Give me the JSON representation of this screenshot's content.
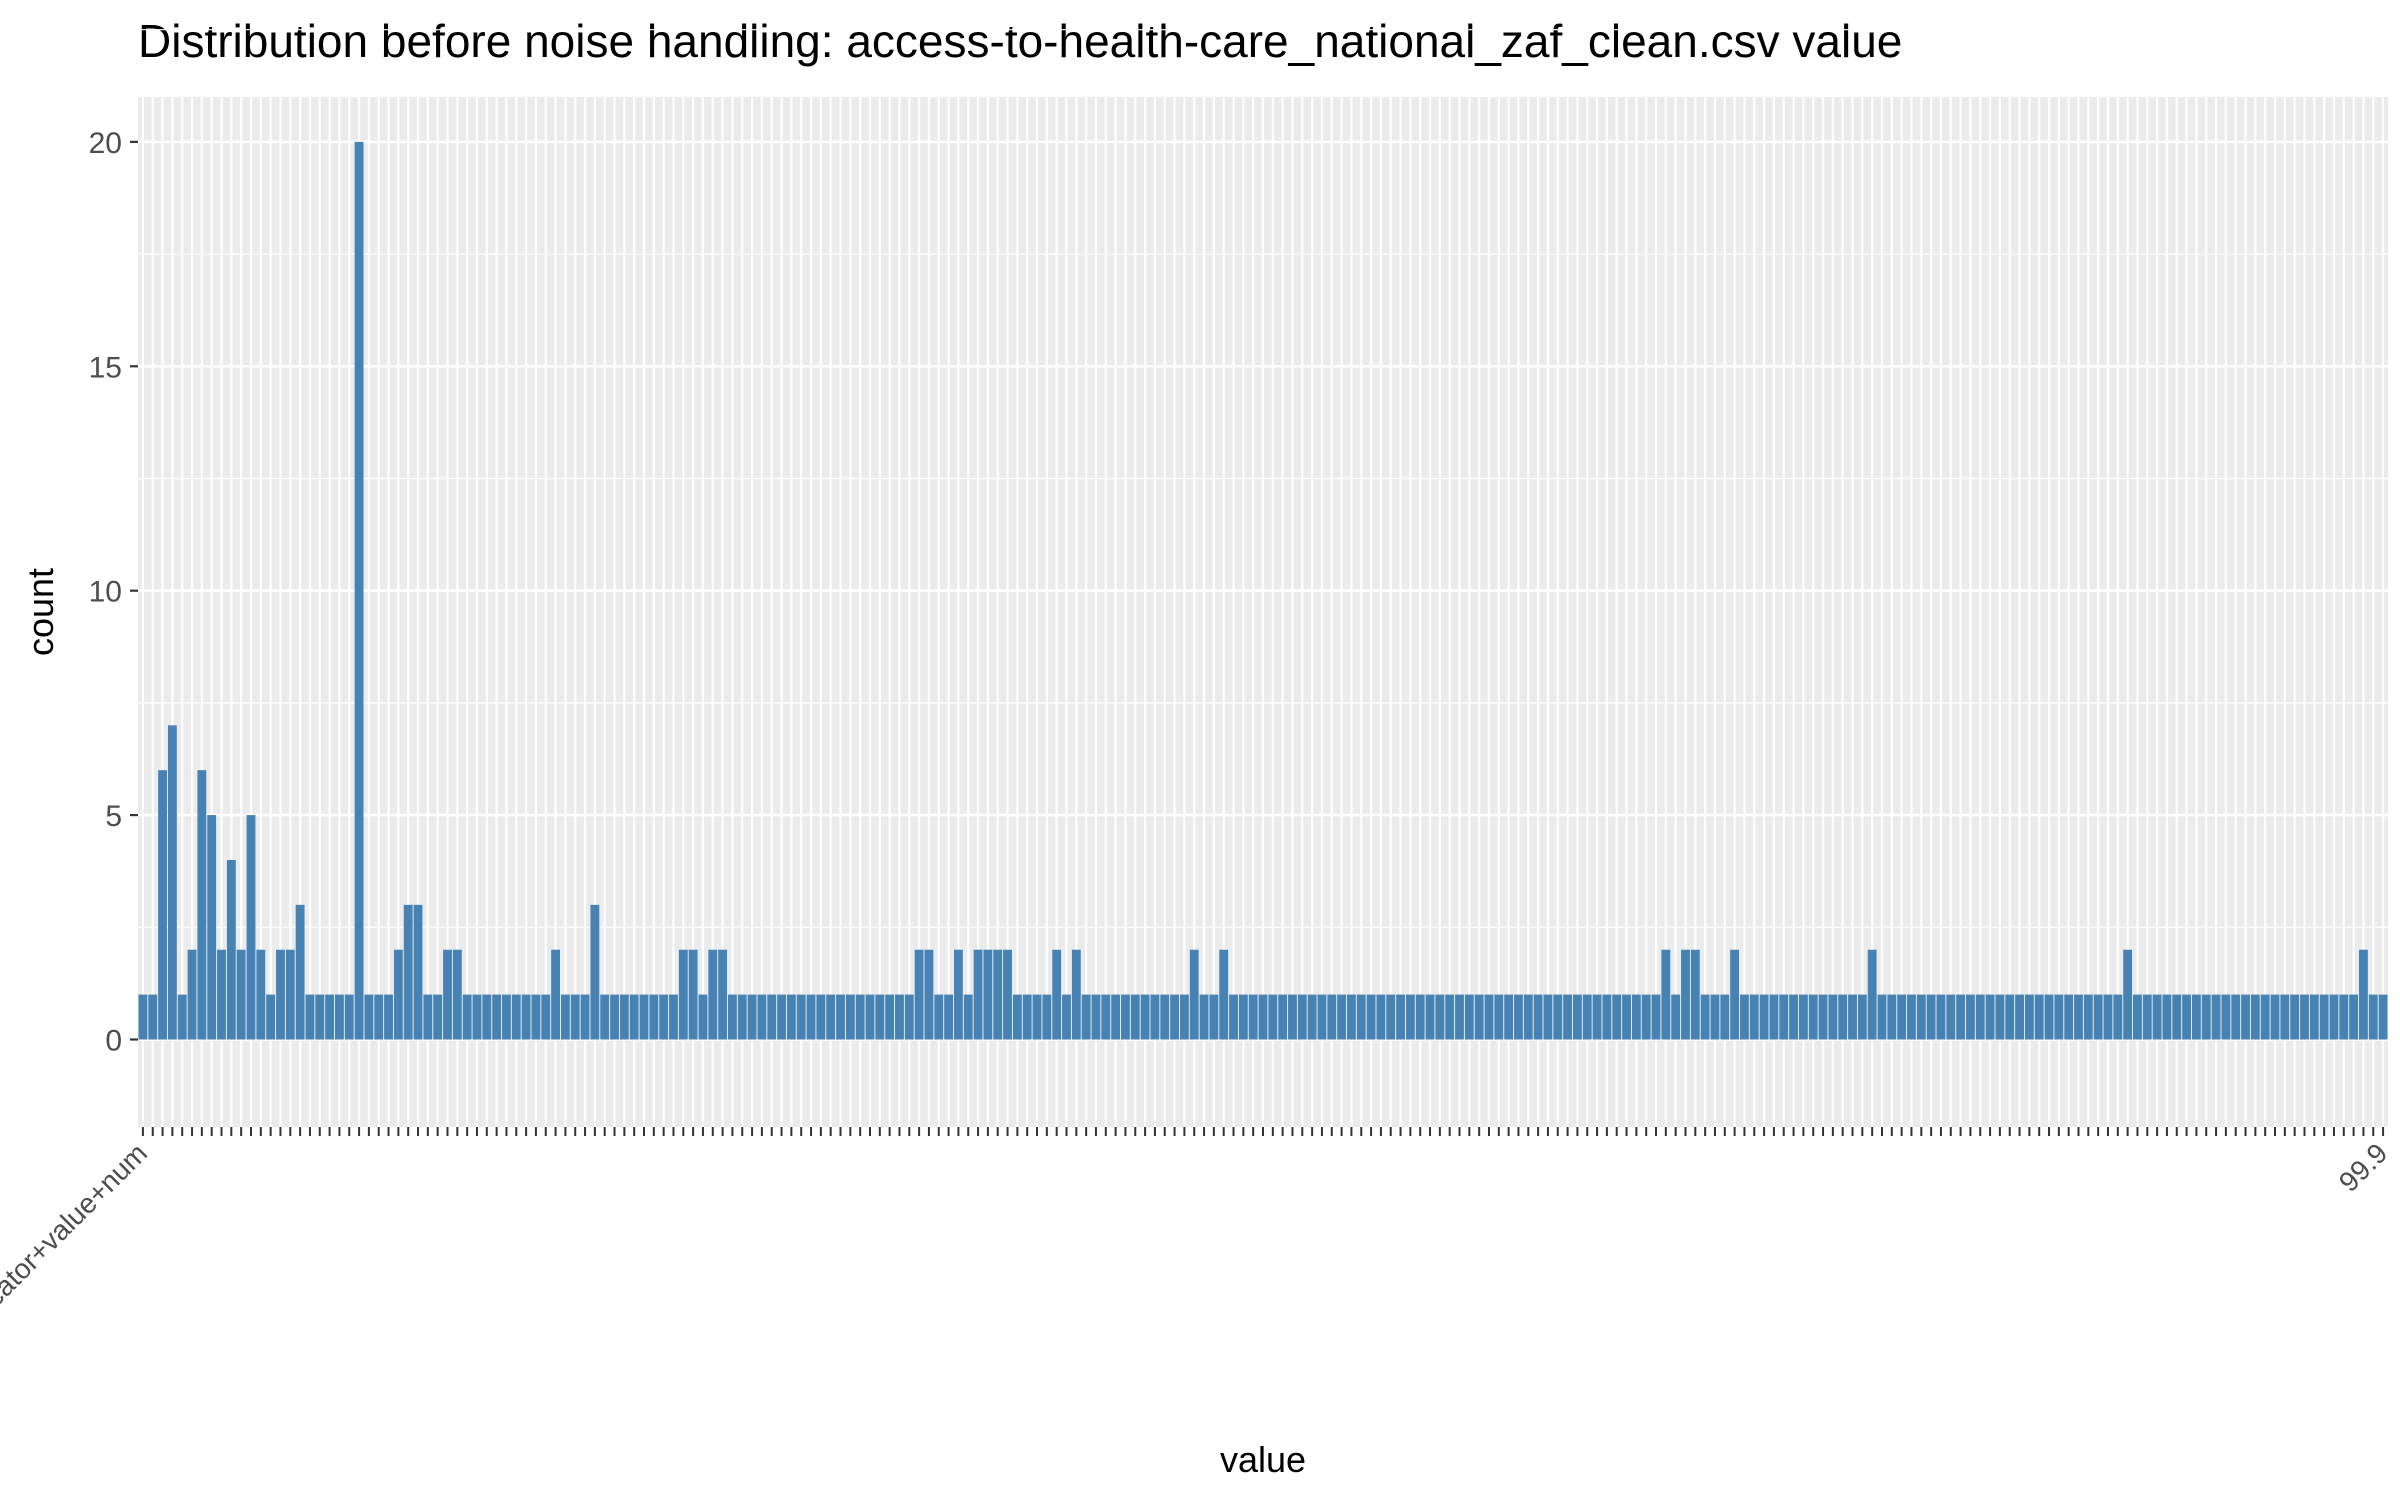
{
  "chart_data": {
    "type": "bar",
    "title": "Distribution before noise handling: access-to-health-care_national_zaf_clean.csv value",
    "xlabel": "value",
    "ylabel": "count",
    "ylim": [
      -1.95,
      21
    ],
    "yticks": [
      0,
      5,
      10,
      15,
      20
    ],
    "grid": true,
    "first_category": "indicator+value+num",
    "last_category": "99.9",
    "values": [
      1,
      1,
      6,
      7,
      1,
      2,
      6,
      5,
      2,
      4,
      2,
      5,
      2,
      1,
      2,
      2,
      3,
      1,
      1,
      1,
      1,
      1,
      20,
      1,
      1,
      1,
      2,
      3,
      3,
      1,
      1,
      2,
      2,
      1,
      1,
      1,
      1,
      1,
      1,
      1,
      1,
      1,
      2,
      1,
      1,
      1,
      3,
      1,
      1,
      1,
      1,
      1,
      1,
      1,
      1,
      2,
      2,
      1,
      2,
      2,
      1,
      1,
      1,
      1,
      1,
      1,
      1,
      1,
      1,
      1,
      1,
      1,
      1,
      1,
      1,
      1,
      1,
      1,
      1,
      2,
      2,
      1,
      1,
      2,
      1,
      2,
      2,
      2,
      2,
      1,
      1,
      1,
      1,
      2,
      1,
      2,
      1,
      1,
      1,
      1,
      1,
      1,
      1,
      1,
      1,
      1,
      1,
      2,
      1,
      1,
      2,
      1,
      1,
      1,
      1,
      1,
      1,
      1,
      1,
      1,
      1,
      1,
      1,
      1,
      1,
      1,
      1,
      1,
      1,
      1,
      1,
      1,
      1,
      1,
      1,
      1,
      1,
      1,
      1,
      1,
      1,
      1,
      1,
      1,
      1,
      1,
      1,
      1,
      1,
      1,
      1,
      1,
      1,
      1,
      1,
      2,
      1,
      2,
      2,
      1,
      1,
      1,
      2,
      1,
      1,
      1,
      1,
      1,
      1,
      1,
      1,
      1,
      1,
      1,
      1,
      1,
      2,
      1,
      1,
      1,
      1,
      1,
      1,
      1,
      1,
      1,
      1,
      1,
      1,
      1,
      1,
      1,
      1,
      1,
      1,
      1,
      1,
      1,
      1,
      1,
      1,
      1,
      2,
      1,
      1,
      1,
      1,
      1,
      1,
      1,
      1,
      1,
      1,
      1,
      1,
      1,
      1,
      1,
      1,
      1,
      1,
      1,
      1,
      1,
      1,
      1,
      2,
      1,
      1
    ],
    "bar_color": "#4682B4",
    "panel_color": "#EBEBEB",
    "grid_color": "#FFFFFF",
    "text_color": "#4D4D4D",
    "tick_color": "#333333"
  }
}
